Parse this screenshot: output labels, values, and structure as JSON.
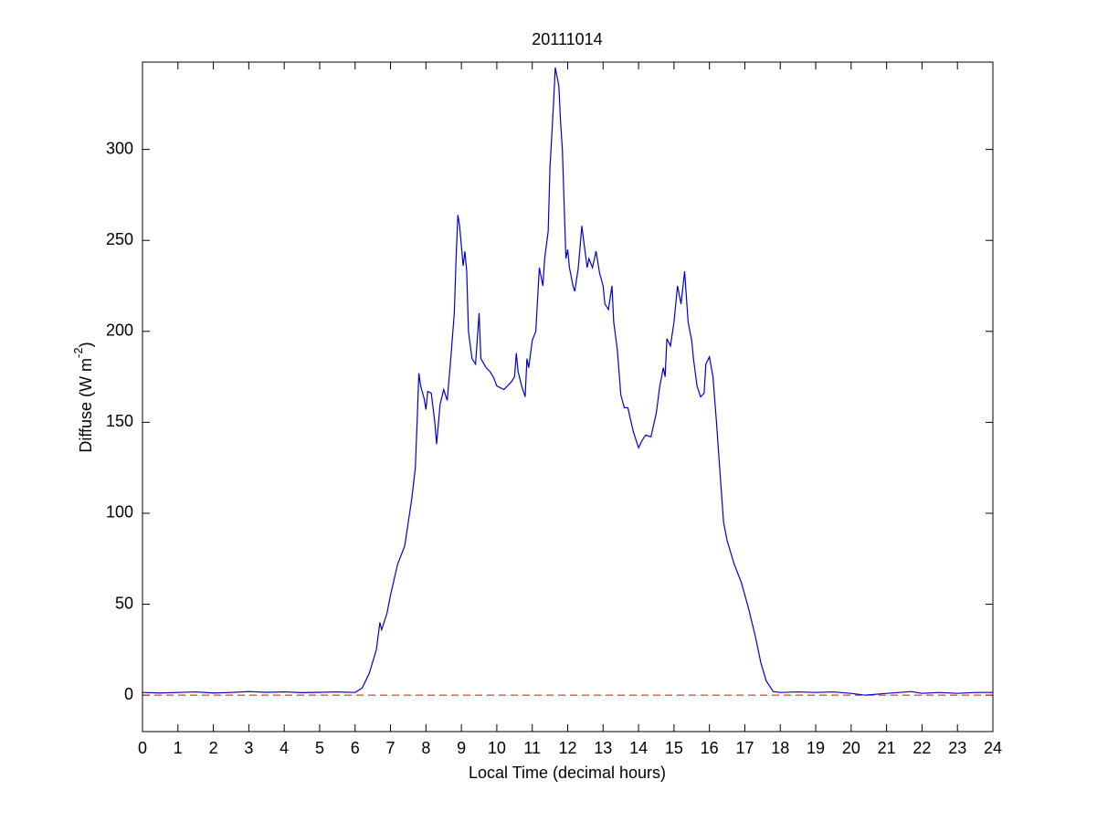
{
  "chart_data": {
    "type": "line",
    "title": "20111014",
    "xlabel": "Local Time (decimal hours)",
    "ylabel": {
      "text": "Diffuse (W m",
      "superscript": "-2",
      "suffix": ")"
    },
    "xlim": [
      0,
      24
    ],
    "ylim": [
      -20,
      348
    ],
    "xticks": [
      0,
      1,
      2,
      3,
      4,
      5,
      6,
      7,
      8,
      9,
      10,
      11,
      12,
      13,
      14,
      15,
      16,
      17,
      18,
      19,
      20,
      21,
      22,
      23,
      24
    ],
    "yticks": [
      0,
      50,
      100,
      150,
      200,
      250,
      300
    ],
    "grid": false,
    "reference_line": {
      "value": 0,
      "color": "#ff0000",
      "style": "dashed"
    },
    "series": [
      {
        "color": "#0000cc",
        "x": [
          0,
          0.5,
          1,
          1.5,
          2,
          2.5,
          3,
          3.5,
          4,
          4.5,
          5,
          5.5,
          6,
          6.2,
          6.4,
          6.6,
          6.7,
          6.75,
          6.9,
          7.0,
          7.2,
          7.4,
          7.5,
          7.6,
          7.7,
          7.75,
          7.8,
          7.85,
          7.95,
          8.0,
          8.05,
          8.15,
          8.25,
          8.3,
          8.4,
          8.5,
          8.6,
          8.7,
          8.8,
          8.85,
          8.9,
          8.95,
          9.05,
          9.1,
          9.15,
          9.2,
          9.3,
          9.4,
          9.5,
          9.55,
          9.7,
          9.8,
          9.9,
          10.0,
          10.2,
          10.4,
          10.5,
          10.55,
          10.6,
          10.7,
          10.8,
          10.85,
          10.9,
          11.0,
          11.1,
          11.2,
          11.3,
          11.35,
          11.45,
          11.5,
          11.6,
          11.65,
          11.7,
          11.75,
          11.8,
          11.85,
          11.9,
          11.95,
          12.0,
          12.05,
          12.15,
          12.2,
          12.3,
          12.4,
          12.45,
          12.55,
          12.6,
          12.7,
          12.8,
          12.9,
          13.0,
          13.05,
          13.15,
          13.25,
          13.3,
          13.4,
          13.5,
          13.6,
          13.7,
          13.85,
          14.0,
          14.1,
          14.2,
          14.35,
          14.5,
          14.6,
          14.7,
          14.75,
          14.8,
          14.9,
          15.0,
          15.1,
          15.2,
          15.3,
          15.4,
          15.5,
          15.55,
          15.65,
          15.75,
          15.85,
          15.9,
          16.0,
          16.1,
          16.2,
          16.3,
          16.4,
          16.5,
          16.7,
          16.9,
          17.1,
          17.3,
          17.45,
          17.6,
          17.8,
          18.0,
          18.5,
          19.0,
          19.5,
          20.0,
          20.4,
          21.0,
          21.7,
          22.0,
          22.5,
          23.0,
          23.5,
          24.0
        ],
        "values": [
          1.5,
          1.2,
          1.5,
          1.8,
          1.2,
          1.5,
          2,
          1.6,
          1.8,
          1.4,
          1.6,
          1.8,
          1.5,
          4,
          12,
          25,
          40,
          36,
          45,
          55,
          72,
          82,
          95,
          108,
          125,
          150,
          177,
          170,
          163,
          157,
          167,
          166,
          150,
          138,
          160,
          168,
          162,
          185,
          210,
          240,
          264,
          258,
          236,
          244,
          233,
          200,
          185,
          182,
          210,
          185,
          180,
          178,
          175,
          170,
          168,
          172,
          175,
          188,
          178,
          170,
          164,
          185,
          180,
          195,
          200,
          235,
          225,
          240,
          255,
          290,
          325,
          345,
          340,
          335,
          315,
          300,
          270,
          240,
          245,
          235,
          225,
          222,
          235,
          258,
          250,
          235,
          240,
          235,
          244,
          232,
          225,
          215,
          212,
          225,
          205,
          190,
          165,
          158,
          158,
          145,
          136,
          140,
          143,
          142,
          155,
          170,
          180,
          175,
          196,
          192,
          205,
          225,
          215,
          233,
          205,
          195,
          185,
          170,
          164,
          166,
          182,
          186,
          175,
          150,
          122,
          95,
          85,
          72,
          62,
          48,
          32,
          18,
          8,
          2,
          1.5,
          1.8,
          1.5,
          1.8,
          1,
          0,
          1,
          2,
          1,
          1.5,
          1,
          1.5,
          1.5
        ]
      }
    ]
  }
}
